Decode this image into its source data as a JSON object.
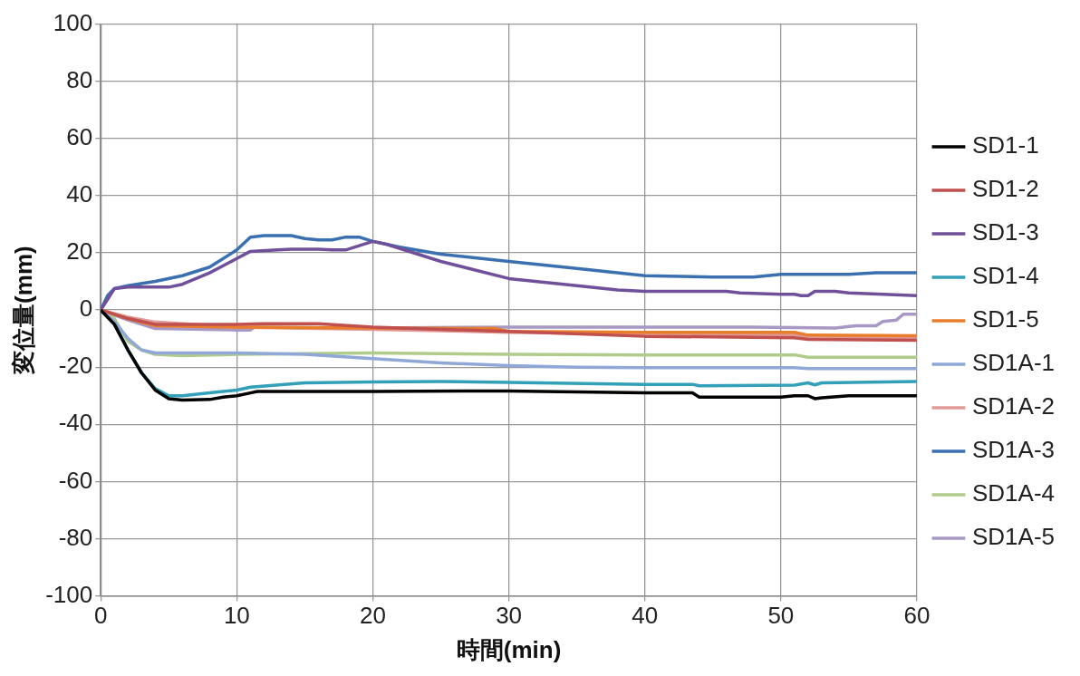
{
  "chart_data": {
    "type": "line",
    "xlabel": "時間(min)",
    "ylabel": "変位量(mm)",
    "xlim": [
      0,
      60
    ],
    "xticks": [
      0,
      10,
      20,
      30,
      40,
      50,
      60
    ],
    "ylim": [
      -100,
      100
    ],
    "yticks": [
      -100,
      -80,
      -60,
      -40,
      -20,
      0,
      20,
      40,
      60,
      80,
      100
    ],
    "grid": true,
    "legend": "right",
    "marker": "none",
    "line_style": "solid",
    "series": [
      {
        "name": "SD1-1",
        "color": "#000000",
        "x": [
          0,
          1,
          2,
          3,
          4,
          5,
          6,
          8,
          9,
          10,
          11,
          11.5,
          20,
          30,
          40,
          43.5,
          44,
          50,
          51,
          52,
          52.5,
          53,
          55,
          60
        ],
        "values": [
          0,
          -5,
          -14,
          -22,
          -28,
          -31,
          -31.5,
          -31.3,
          -30.5,
          -30,
          -29,
          -28.5,
          -28.5,
          -28.3,
          -29,
          -29,
          -30.5,
          -30.5,
          -30,
          -30,
          -31,
          -30.7,
          -30,
          -30
        ]
      },
      {
        "name": "SD1-2",
        "color": "#c0504d",
        "x": [
          0,
          2,
          4,
          10,
          12,
          16,
          20,
          30,
          40,
          51,
          52,
          60
        ],
        "values": [
          0,
          -3,
          -5,
          -5,
          -4.8,
          -4.8,
          -6,
          -7.5,
          -9.2,
          -9.7,
          -10.3,
          -10.6
        ]
      },
      {
        "name": "SD1-3",
        "color": "#70509a",
        "x": [
          0,
          1,
          2,
          5,
          6,
          8,
          10,
          11,
          13,
          14,
          16,
          17,
          18,
          19,
          20,
          21,
          25,
          30,
          35,
          38,
          40,
          46,
          47,
          50,
          51,
          51.5,
          52,
          52.5,
          54,
          55,
          60
        ],
        "values": [
          0,
          7.5,
          8,
          8,
          9,
          13,
          18,
          20.5,
          21,
          21.3,
          21.3,
          21,
          21,
          22.5,
          24,
          23,
          17,
          11,
          8.5,
          7,
          6.5,
          6.5,
          6,
          5.5,
          5.5,
          5,
          5,
          6.5,
          6.5,
          6,
          5
        ]
      },
      {
        "name": "SD1-4",
        "color": "#31a0b8",
        "x": [
          0,
          1,
          2,
          3,
          4,
          5,
          6,
          8,
          10,
          11,
          15,
          20,
          25,
          30,
          40,
          43.5,
          44,
          51,
          52,
          52.5,
          53,
          60
        ],
        "values": [
          0,
          -5,
          -14,
          -22,
          -27.5,
          -30,
          -30,
          -29,
          -28,
          -27,
          -25.5,
          -25.2,
          -25,
          -25.3,
          -26,
          -26,
          -26.5,
          -26.3,
          -25.5,
          -26.2,
          -25.5,
          -25
        ]
      },
      {
        "name": "SD1-5",
        "color": "#e87d2c",
        "x": [
          0,
          2,
          4,
          10,
          20,
          29,
          30,
          40,
          51,
          52,
          60
        ],
        "values": [
          0,
          -3,
          -5.5,
          -6,
          -6.3,
          -6.5,
          -7.5,
          -7.8,
          -7.8,
          -8.8,
          -9
        ]
      },
      {
        "name": "SD1A-1",
        "color": "#8fa8d8",
        "x": [
          0,
          1,
          2,
          3,
          4,
          10,
          15,
          20,
          25,
          30,
          35,
          40,
          51,
          52,
          60
        ],
        "values": [
          0,
          -4,
          -10,
          -14,
          -15,
          -15,
          -15.5,
          -17,
          -18.5,
          -19.5,
          -20,
          -20.2,
          -20.2,
          -20.5,
          -20.5
        ]
      },
      {
        "name": "SD1A-2",
        "color": "#e09a98",
        "x": [
          0,
          2,
          4,
          10,
          20,
          30,
          40,
          51,
          52,
          60
        ],
        "values": [
          0,
          -2.5,
          -4.2,
          -6,
          -6.8,
          -7.8,
          -8.4,
          -8.7,
          -9.5,
          -9.8
        ]
      },
      {
        "name": "SD1A-3",
        "color": "#3a70b0",
        "x": [
          0,
          0.5,
          1,
          2,
          4,
          6,
          8,
          10,
          11,
          12,
          14,
          15,
          16,
          17,
          18,
          19,
          20,
          22,
          25,
          30,
          35,
          40,
          45,
          48,
          50,
          55,
          57,
          60
        ],
        "values": [
          0,
          5,
          7.5,
          8.5,
          10,
          12,
          15,
          21,
          25.5,
          26,
          26,
          25,
          24.5,
          24.5,
          25.5,
          25.5,
          24,
          22,
          19.5,
          17,
          14.5,
          12,
          11.5,
          11.5,
          12.5,
          12.5,
          13,
          13
        ]
      },
      {
        "name": "SD1A-4",
        "color": "#b0cc8a",
        "x": [
          0,
          1,
          2,
          3,
          4,
          6,
          10,
          20,
          30,
          40,
          51,
          52,
          60
        ],
        "values": [
          0,
          -3,
          -11,
          -14,
          -15.5,
          -16,
          -15.5,
          -15,
          -15.5,
          -15.7,
          -15.7,
          -16.5,
          -16.5
        ]
      },
      {
        "name": "SD1A-5",
        "color": "#a898c4",
        "x": [
          0,
          2,
          4,
          10,
          11,
          11.3,
          20,
          30,
          40,
          48,
          54,
          55.5,
          57,
          57.5,
          58.5,
          59,
          60
        ],
        "values": [
          0,
          -3.5,
          -6.5,
          -7,
          -7,
          -6,
          -6.3,
          -6,
          -6,
          -6,
          -6.3,
          -5.5,
          -5.5,
          -4,
          -3.5,
          -1.5,
          -1.5
        ]
      }
    ]
  }
}
